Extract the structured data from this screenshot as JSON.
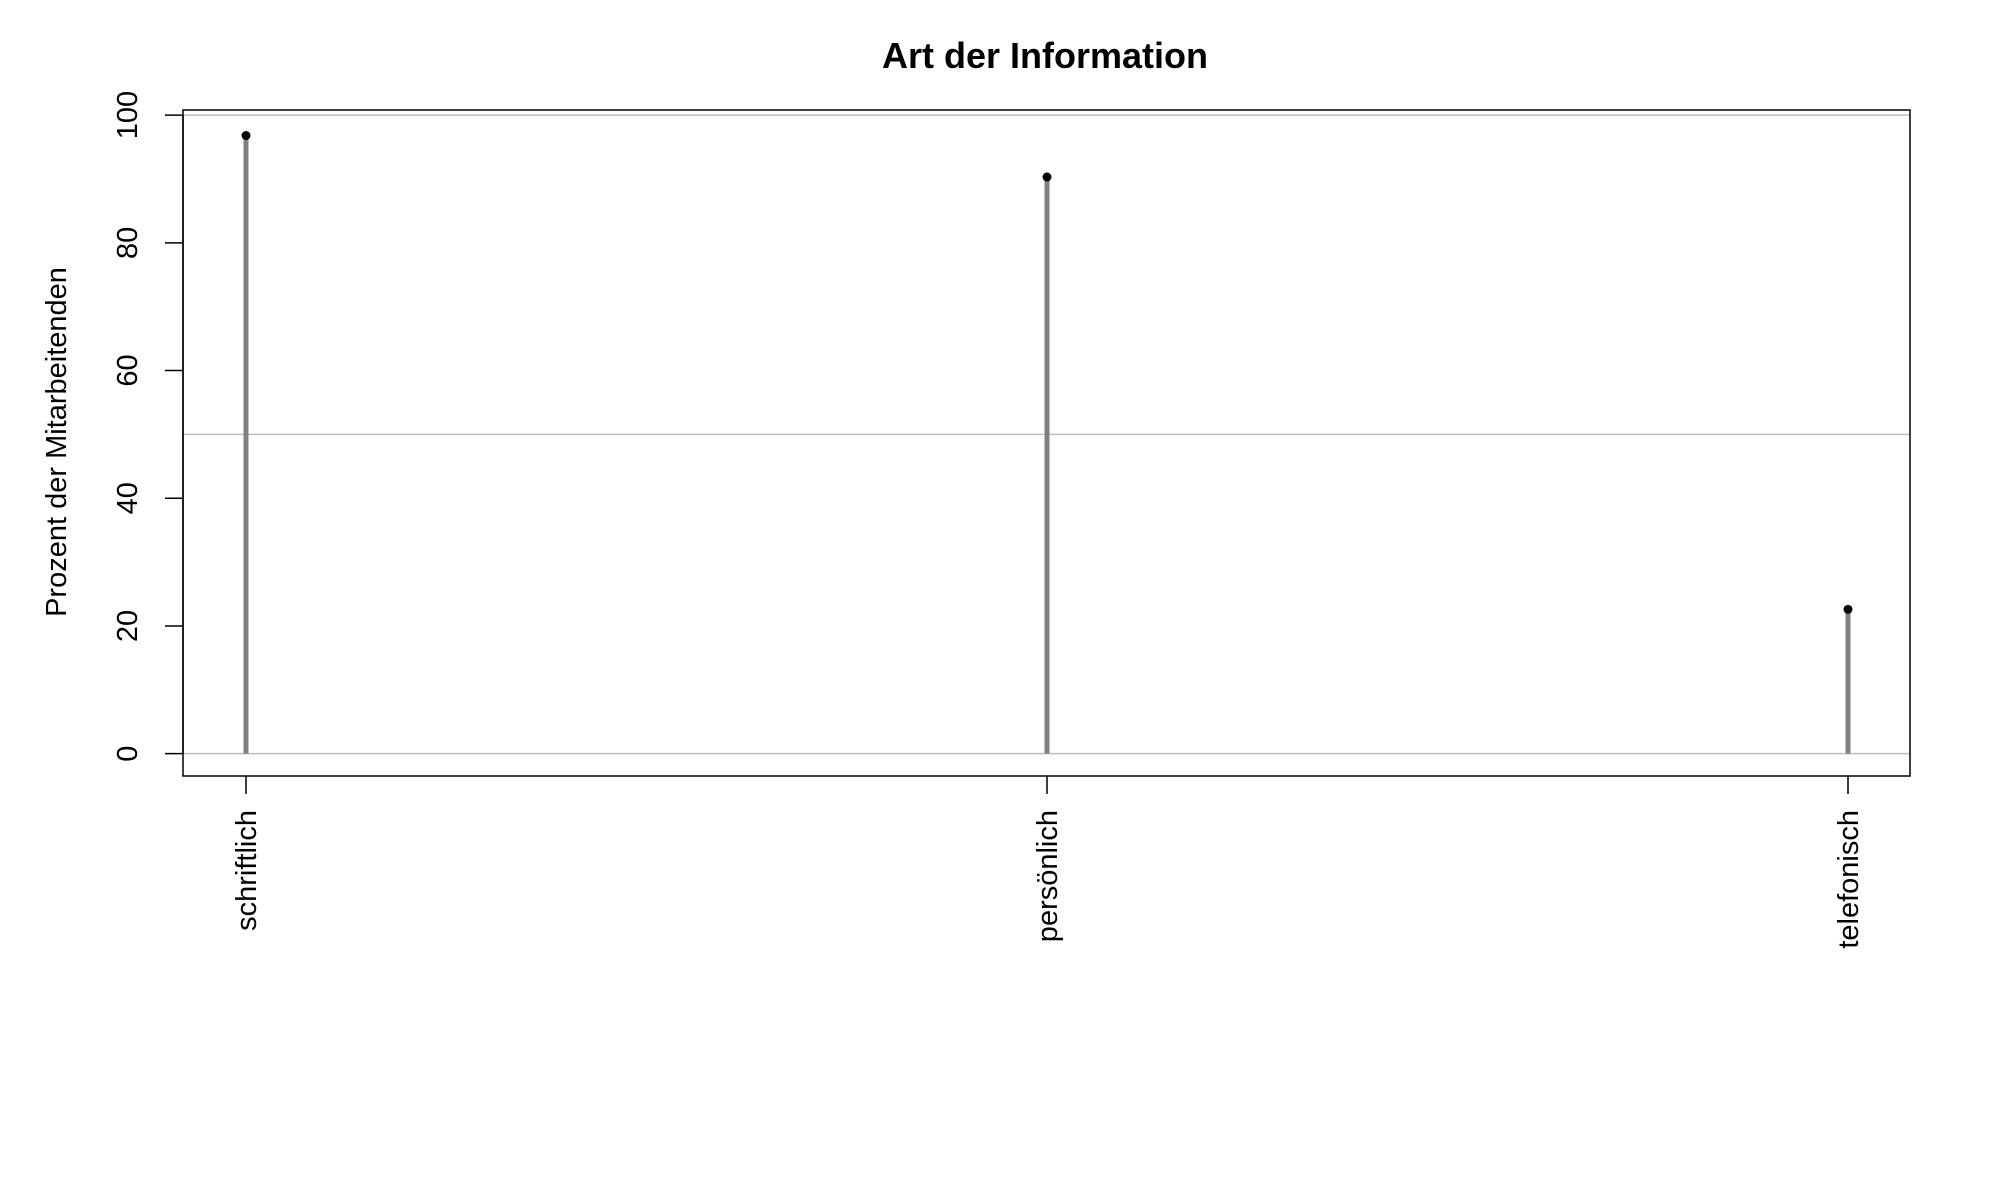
{
  "chart_data": {
    "type": "lollipop",
    "title": "Art der Information",
    "xlabel": "",
    "ylabel": "Prozent der Mitarbeitenden",
    "categories": [
      "schriftlich",
      "persönlich",
      "telefonisch"
    ],
    "values": [
      96.8,
      90.3,
      22.6
    ],
    "ylim": [
      -3.5,
      100.8
    ],
    "yticks": [
      0,
      20,
      40,
      60,
      80,
      100
    ],
    "reference_lines": [
      0,
      50,
      100
    ],
    "grid": false,
    "legend": "none",
    "colors": {
      "stem": "#808080",
      "point": "#000000",
      "reference": "#bebebe",
      "frame": "#000000"
    }
  }
}
